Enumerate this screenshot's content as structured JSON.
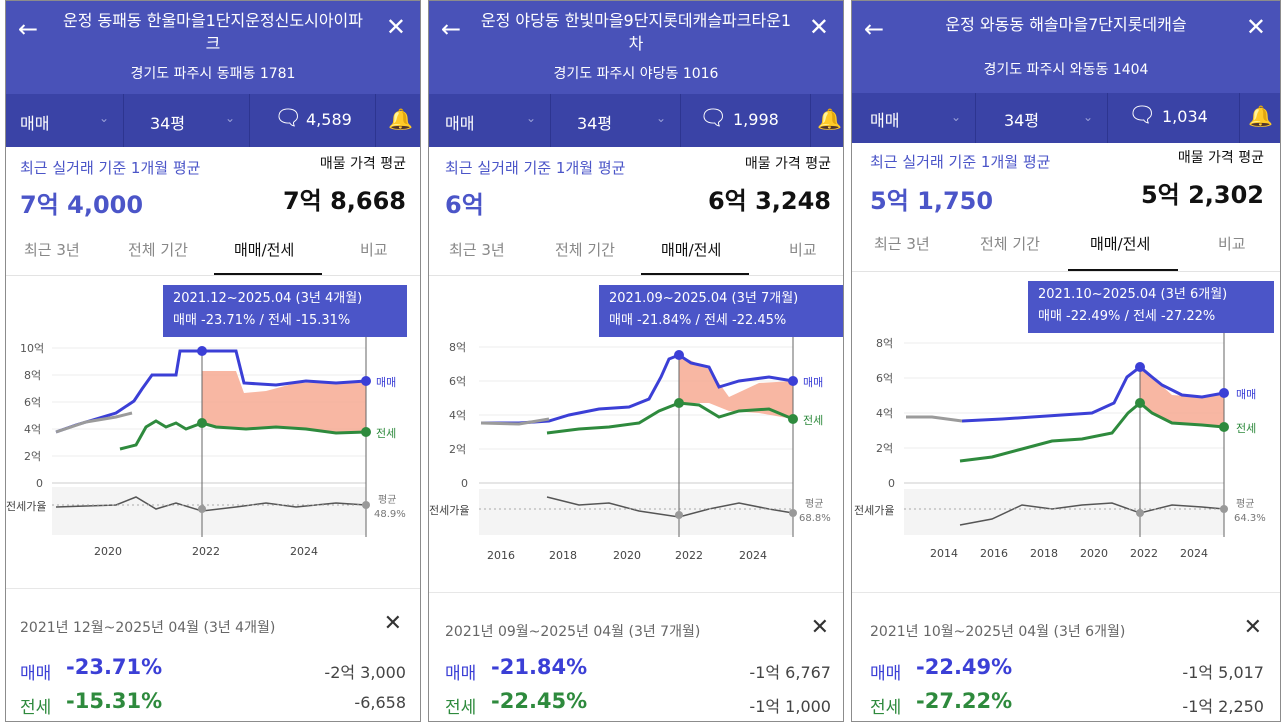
{
  "colors": {
    "header": "#4952b8",
    "subbar": "#3a43a6",
    "buy": "#3b3fd6",
    "rent": "#2e8a3d",
    "gap": "#f6a58c"
  },
  "icons": {
    "back": "arrow-left-icon",
    "close": "close-icon",
    "comment": "chat-bubble-icon",
    "bell": "bell-icon",
    "chevron": "chevron-down-icon"
  },
  "panels": [
    {
      "title": "운정 동패동 한울마을1단지운정신도시아이파크",
      "address": "경기도 파주시 동패동 1781",
      "deal_type": "매매",
      "size": "34평",
      "comments": "4,589",
      "recent_label": "최근 실거래 기준 1개월 평균",
      "recent_value": "7억 4,000",
      "avg_label": "매물 가격 평균",
      "avg_value": "7억 8,668",
      "tabs": [
        "최근 3년",
        "전체 기간",
        "매매/전세",
        "비교"
      ],
      "tooltip_line1": "2021.12~2025.04 (3년 4개월)",
      "tooltip_line2": "매매 -23.71%  /  전세 -15.31%",
      "y_labels": [
        "10억",
        "8억",
        "6억",
        "4억",
        "2억",
        "0"
      ],
      "series_buy": "매매",
      "series_rent": "전세",
      "ratio_label": "전세가율",
      "ratio_avg_label": "평균",
      "ratio_avg_value": "48.9%",
      "x_labels": [
        "2020",
        "2022",
        "2024"
      ],
      "range_text": "2021년 12월~2025년 04월 (3년 4개월)",
      "buy_label": "매매",
      "buy_pct": "-23.71%",
      "buy_amt": "-2억 3,000",
      "rent_label": "전세",
      "rent_pct": "-15.31%",
      "rent_amt": "-6,658"
    },
    {
      "title": "운정 야당동 한빛마을9단지롯데캐슬파크타운1차",
      "address": "경기도 파주시 야당동 1016",
      "deal_type": "매매",
      "size": "34평",
      "comments": "1,998",
      "recent_label": "최근 실거래 기준 1개월 평균",
      "recent_value": "6억",
      "avg_label": "매물 가격 평균",
      "avg_value": "6억 3,248",
      "tabs": [
        "최근 3년",
        "전체 기간",
        "매매/전세",
        "비교"
      ],
      "tooltip_line1": "2021.09~2025.04 (3년 7개월)",
      "tooltip_line2": "매매 -21.84%  /  전세 -22.45%",
      "y_labels": [
        "8억",
        "6억",
        "4억",
        "2억",
        "0"
      ],
      "series_buy": "매매",
      "series_rent": "전세",
      "ratio_label": "전세가율",
      "ratio_avg_label": "평균",
      "ratio_avg_value": "68.8%",
      "x_labels": [
        "2016",
        "2018",
        "2020",
        "2022",
        "2024"
      ],
      "range_text": "2021년 09월~2025년 04월 (3년 7개월)",
      "buy_label": "매매",
      "buy_pct": "-21.84%",
      "buy_amt": "-1억 6,767",
      "rent_label": "전세",
      "rent_pct": "-22.45%",
      "rent_amt": "-1억 1,000"
    },
    {
      "title": "운정 와동동 해솔마을7단지롯데캐슬",
      "address": "경기도 파주시 와동동 1404",
      "deal_type": "매매",
      "size": "34평",
      "comments": "1,034",
      "recent_label": "최근 실거래 기준 1개월 평균",
      "recent_value": "5억 1,750",
      "avg_label": "매물 가격 평균",
      "avg_value": "5억 2,302",
      "tabs": [
        "최근 3년",
        "전체 기간",
        "매매/전세",
        "비교"
      ],
      "tooltip_line1": "2021.10~2025.04 (3년 6개월)",
      "tooltip_line2": "매매 -22.49%  /  전세 -27.22%",
      "y_labels": [
        "8억",
        "6억",
        "4억",
        "2억",
        "0"
      ],
      "series_buy": "매매",
      "series_rent": "전세",
      "ratio_label": "전세가율",
      "ratio_avg_label": "평균",
      "ratio_avg_value": "64.3%",
      "x_labels": [
        "2014",
        "2016",
        "2018",
        "2020",
        "2022",
        "2024"
      ],
      "range_text": "2021년 10월~2025년 04월 (3년 6개월)",
      "buy_label": "매매",
      "buy_pct": "-22.49%",
      "buy_amt": "-1억 5,017",
      "rent_label": "전세",
      "rent_pct": "-27.22%",
      "rent_amt": "-1억 2,250"
    }
  ]
}
